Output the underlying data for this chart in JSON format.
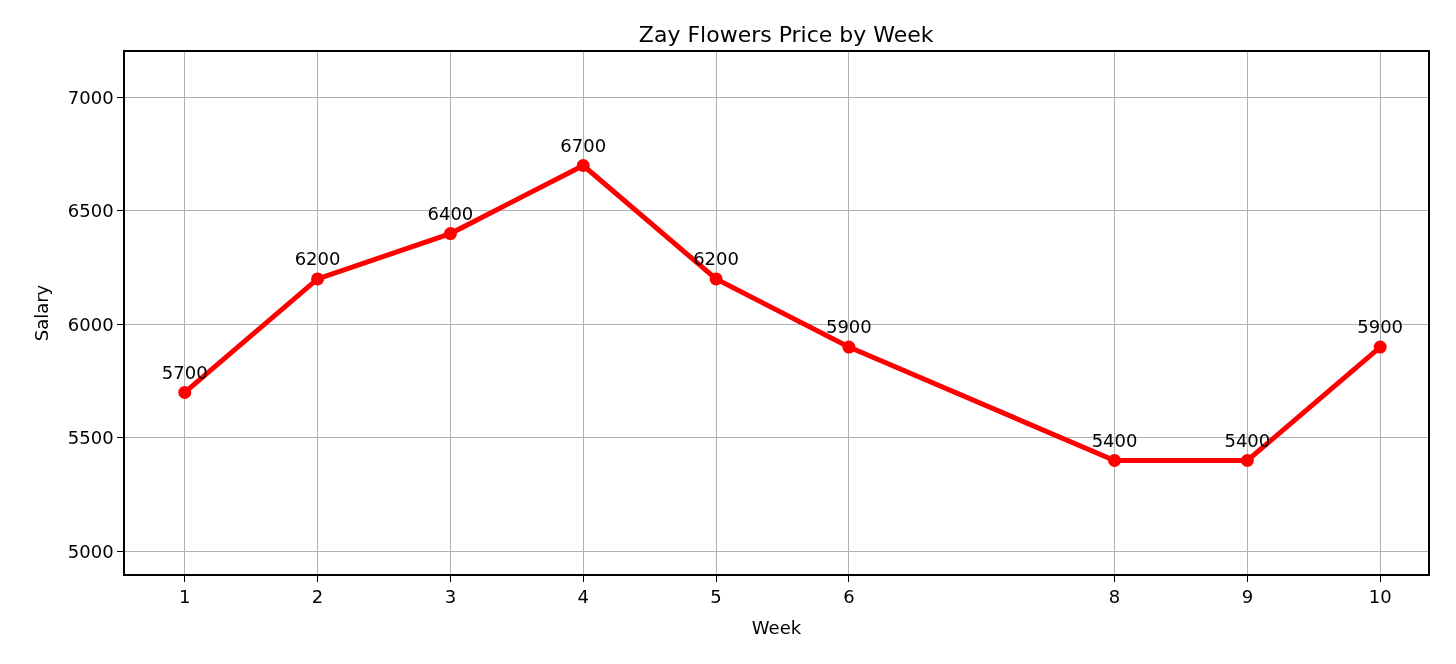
{
  "chart_data": {
    "type": "line",
    "title": "Zay Flowers Price by Week",
    "xlabel": "Week",
    "ylabel": "Salary",
    "x": [
      1,
      2,
      3,
      4,
      5,
      6,
      8,
      9,
      10
    ],
    "series": [
      {
        "color": "#ff0000",
        "values": [
          5700,
          6200,
          6400,
          6700,
          6200,
          5900,
          5400,
          5400,
          5900
        ]
      }
    ],
    "xlim": [
      0.55,
      10.36
    ],
    "xticks": [
      1,
      2,
      3,
      4,
      5,
      6,
      8,
      9,
      10
    ],
    "ylim": [
      4900,
      7200
    ],
    "yticks": [
      5000,
      5500,
      6000,
      6500,
      7000
    ],
    "grid": true,
    "marker": "circle",
    "line_style": "solid",
    "data_labels": true
  }
}
